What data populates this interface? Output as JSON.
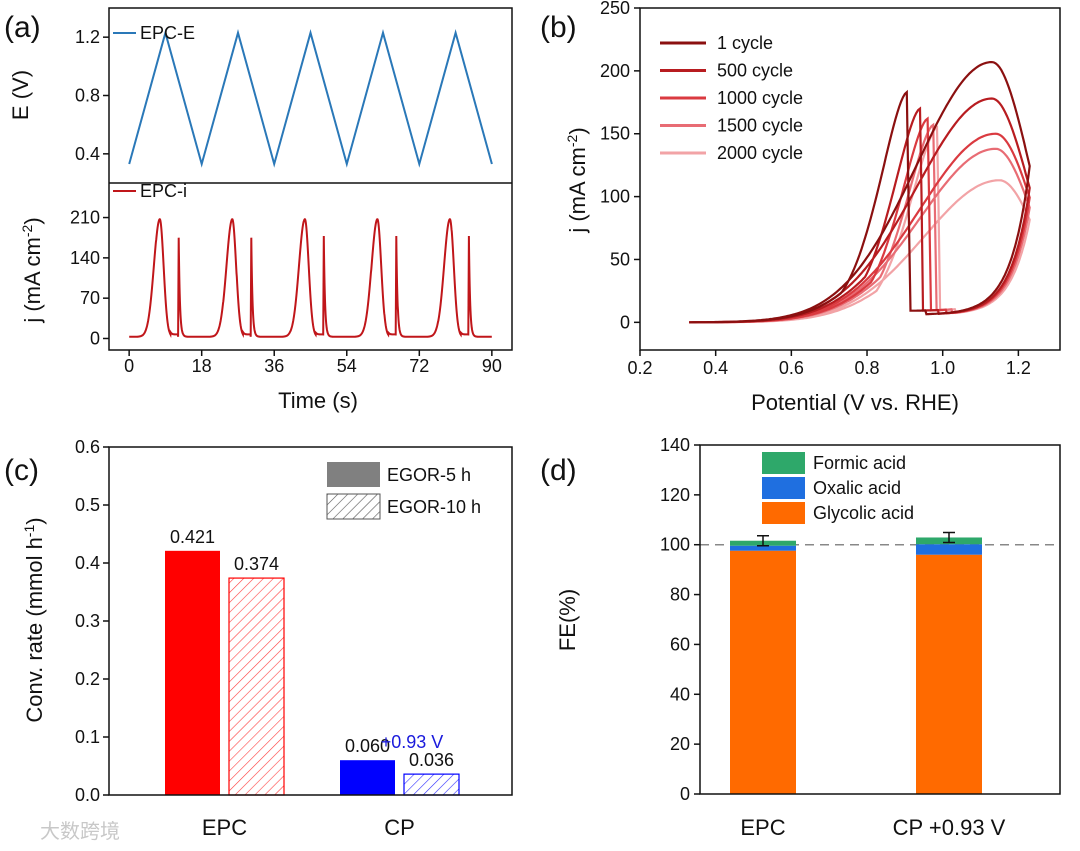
{
  "watermark": "大数跨境",
  "chart_data": [
    {
      "panel": "(a)",
      "type": "line",
      "xlabel": "Time (s)",
      "xlim": [
        -5,
        95
      ],
      "xticks": [
        "0",
        "18",
        "36",
        "54",
        "72",
        "90"
      ],
      "subplots": [
        {
          "ylabel": "E (V)",
          "ylim": [
            0.2,
            1.4
          ],
          "yticks": [
            "0.4",
            "0.8",
            "1.2"
          ],
          "series": [
            {
              "name": "EPC-E",
              "color": "#2a78b8",
              "x": [
                0,
                9,
                18,
                27,
                36,
                45,
                54,
                63,
                72,
                81,
                90
              ],
              "y": [
                0.33,
                1.23,
                0.33,
                1.23,
                0.33,
                1.23,
                0.33,
                1.23,
                0.33,
                1.23,
                0.33
              ]
            }
          ]
        },
        {
          "ylabel": "j (mA cm-2)",
          "ylim": [
            -20,
            270
          ],
          "yticks": [
            "0",
            "70",
            "140",
            "210"
          ],
          "series": [
            {
              "name": "EPC-i",
              "color": "#c0161a",
              "period": 18,
              "cycles": 5,
              "baseline": 3,
              "main_peak": {
                "t": 7.6,
                "j": 207
              },
              "spike_peak": {
                "t": 12.3,
                "j": 175
              }
            }
          ]
        }
      ]
    },
    {
      "panel": "(b)",
      "type": "line",
      "xlabel": "Potential (V vs. RHE)",
      "ylabel": "j (mA cm-2)",
      "xlim": [
        0.2,
        1.31
      ],
      "ylim": [
        -22,
        250
      ],
      "xticks": [
        "0.2",
        "0.4",
        "0.6",
        "0.8",
        "1.0",
        "1.2"
      ],
      "yticks": [
        "0",
        "50",
        "100",
        "150",
        "200",
        "250"
      ],
      "scan_range": [
        0.33,
        1.23
      ],
      "legend": "top-left",
      "series": [
        {
          "name": "1 cycle",
          "color": "#8b1010",
          "forward_peak": {
            "V": 1.13,
            "j": 207
          },
          "reverse_peak": {
            "V": 0.905,
            "j": 183
          }
        },
        {
          "name": "500 cycle",
          "color": "#b81c20",
          "forward_peak": {
            "V": 1.13,
            "j": 178
          },
          "reverse_peak": {
            "V": 0.94,
            "j": 170
          }
        },
        {
          "name": "1000 cycle",
          "color": "#da3a40",
          "forward_peak": {
            "V": 1.14,
            "j": 150
          },
          "reverse_peak": {
            "V": 0.96,
            "j": 162
          }
        },
        {
          "name": "1500 cycle",
          "color": "#e86c74",
          "forward_peak": {
            "V": 1.14,
            "j": 138
          },
          "reverse_peak": {
            "V": 0.975,
            "j": 157
          }
        },
        {
          "name": "2000 cycle",
          "color": "#f2a3a6",
          "forward_peak": {
            "V": 1.15,
            "j": 113
          },
          "reverse_peak": {
            "V": 0.985,
            "j": 155
          }
        }
      ]
    },
    {
      "panel": "(c)",
      "type": "bar",
      "ylabel": "Conv. rate (mmol h-1)",
      "ylim": [
        0,
        0.6
      ],
      "yticks": [
        "0.0",
        "0.1",
        "0.2",
        "0.3",
        "0.4",
        "0.5",
        "0.6"
      ],
      "categories": [
        "EPC",
        "CP"
      ],
      "series": [
        {
          "name": "EGOR-5 h",
          "values": [
            0.421,
            0.06
          ],
          "labels": [
            "0.421",
            "0.060"
          ]
        },
        {
          "name": "EGOR-10 h",
          "values": [
            0.374,
            0.036
          ],
          "labels": [
            "0.374",
            "0.036"
          ]
        }
      ],
      "colors": [
        "#ff0000",
        "#0000ff"
      ],
      "legend_color": "#808080",
      "annotation": "+0.93 V",
      "annotation_color": "#1a1adc",
      "legend": "top-right"
    },
    {
      "panel": "(d)",
      "type": "bar",
      "stacked": true,
      "ylabel": "FE(%)",
      "ylim": [
        0,
        140
      ],
      "yticks": [
        "0",
        "20",
        "40",
        "60",
        "80",
        "100",
        "120",
        "140"
      ],
      "categories": [
        "EPC",
        "CP +0.93 V"
      ],
      "series": [
        {
          "name": "Glycolic acid",
          "color": "#ff6a00",
          "values": [
            97.6,
            96.0
          ]
        },
        {
          "name": "Oxalic acid",
          "color": "#1f6fe0",
          "values": [
            2.0,
            4.2
          ]
        },
        {
          "name": "Formic acid",
          "color": "#2ea86a",
          "values": [
            2.0,
            2.7
          ]
        }
      ],
      "error": [
        2.0,
        2.0
      ],
      "reference_line": 100,
      "legend": "top-center"
    }
  ]
}
